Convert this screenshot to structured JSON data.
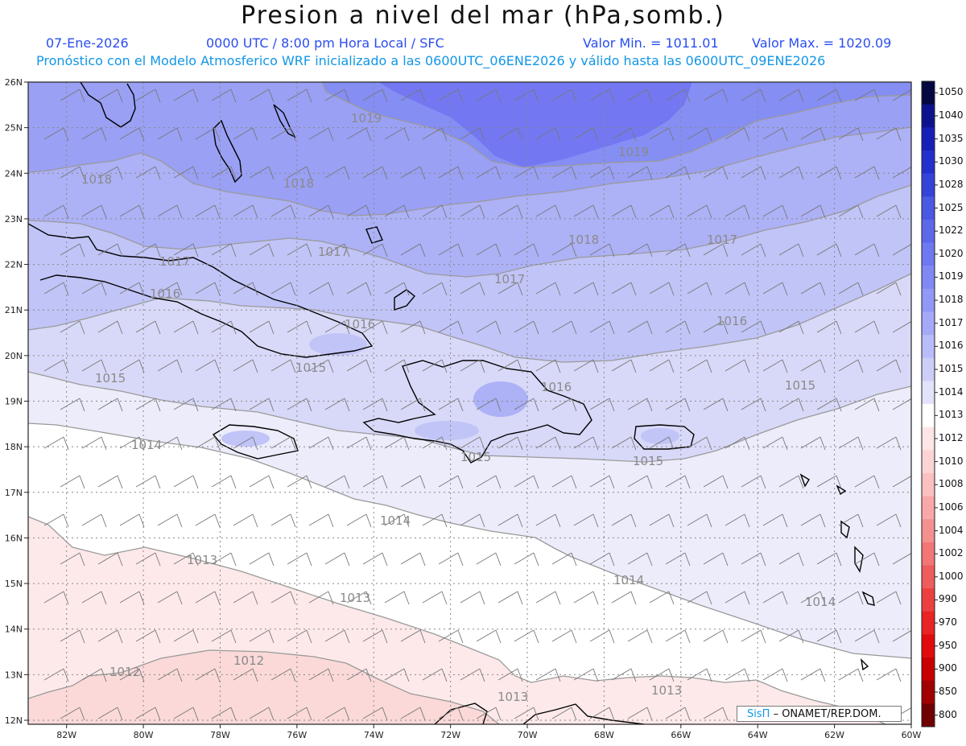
{
  "header": {
    "title": "Presion a nivel del mar (hPa,somb.)",
    "date": "07-Ene-2026",
    "time": "0000 UTC / 8:00 pm Hora Local / SFC",
    "min_label": "Valor Min. = 1011.01",
    "max_label": "Valor Max. = 1020.09",
    "model_info": "Pronóstico con el Modelo Atmosferico WRF inicializado a las 0600UTC_06ENE2026 y válido hasta las  0600UTC_09ENE2026"
  },
  "axes": {
    "lon_labels": [
      "82W",
      "80W",
      "78W",
      "76W",
      "74W",
      "72W",
      "70W",
      "68W",
      "66W",
      "64W",
      "62W",
      "60W"
    ],
    "lat_labels": [
      "26N",
      "25N",
      "24N",
      "23N",
      "22N",
      "21N",
      "20N",
      "19N",
      "18N",
      "17N",
      "16N",
      "15N",
      "14N",
      "13N",
      "12N"
    ]
  },
  "colorbar": {
    "levels": [
      "1050",
      "1040",
      "1035",
      "1030",
      "1028",
      "1025",
      "1022",
      "1020",
      "1019",
      "1018",
      "1017",
      "1016",
      "1015",
      "1014",
      "1013",
      "1012",
      "1010",
      "1008",
      "1006",
      "1004",
      "1002",
      "1000",
      "990",
      "970",
      "950",
      "900",
      "850",
      "800"
    ],
    "colors": [
      "#050840",
      "#0c128c",
      "#1620b8",
      "#2430cc",
      "#3444d8",
      "#4a58e2",
      "#5c68ea",
      "#6e78f0",
      "#8088f4",
      "#9298f6",
      "#a4aaf8",
      "#b8bcf8",
      "#cccef8",
      "#e2e2fa",
      "#ffffff",
      "#ffe6e6",
      "#fdd4d4",
      "#fbc0c0",
      "#f8a8a8",
      "#f59090",
      "#f27676",
      "#ef5c5c",
      "#ec4040",
      "#e82424",
      "#e00c0c",
      "#c80000",
      "#a00000",
      "#700000"
    ]
  },
  "contour_labels": [
    "1019",
    "1019",
    "1018",
    "1018",
    "1018",
    "1017",
    "1017",
    "1017",
    "1017",
    "1016",
    "1016",
    "1016",
    "1016",
    "1015",
    "1015",
    "1015",
    "1015",
    "1015",
    "1014",
    "1014",
    "1014",
    "1014",
    "1013",
    "1013",
    "1013",
    "1013",
    "1012",
    "1012"
  ],
  "credit": {
    "brand": "SisΠ",
    "org": "– ONAMET/REP.DOM."
  }
}
